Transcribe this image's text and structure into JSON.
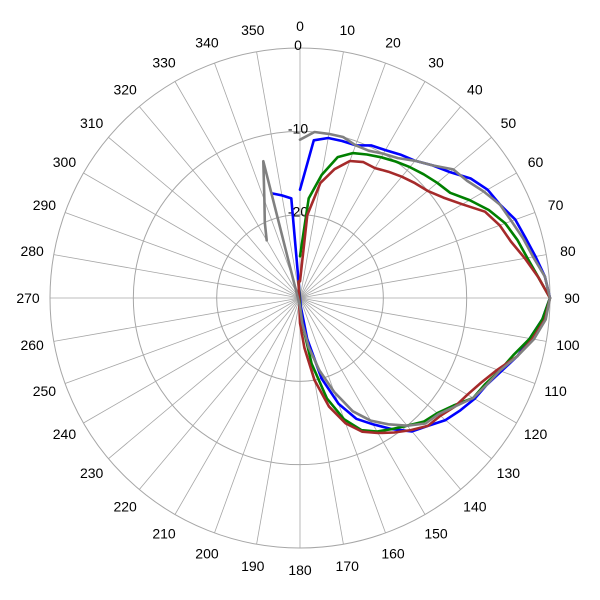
{
  "chart_data": {
    "type": "polar-line",
    "title": "",
    "angle_unit": "degrees",
    "angle_ticks": [
      0,
      10,
      20,
      30,
      40,
      50,
      60,
      70,
      80,
      90,
      100,
      110,
      120,
      130,
      140,
      150,
      160,
      170,
      180,
      190,
      200,
      210,
      220,
      230,
      240,
      250,
      260,
      270,
      280,
      290,
      300,
      310,
      320,
      330,
      340,
      350
    ],
    "angle_tick_labels": [
      "0",
      "10",
      "20",
      "30",
      "40",
      "50",
      "60",
      "70",
      "80",
      "90",
      "100",
      "110",
      "120",
      "130",
      "140",
      "150",
      "160",
      "170",
      "180",
      "190",
      "200",
      "210",
      "220",
      "230",
      "240",
      "250",
      "260",
      "270",
      "280",
      "290",
      "300",
      "310",
      "320",
      "330",
      "340",
      "350"
    ],
    "radial_range": [
      -30,
      0
    ],
    "radial_ticks": [
      0,
      -10,
      -20
    ],
    "radial_tick_labels": [
      "0",
      "-10",
      "-20"
    ],
    "rings": [
      0,
      -10,
      -20,
      -30
    ],
    "grid": true,
    "legend": "none",
    "series": [
      {
        "color": "#0000ff",
        "theta": [
          0,
          5,
          10,
          15,
          20,
          25,
          30,
          35,
          40,
          45,
          50,
          55,
          60,
          65,
          70,
          75,
          80,
          85,
          90,
          95,
          100,
          105,
          110,
          115,
          120,
          125,
          130,
          135,
          140,
          145,
          150,
          155,
          160,
          165,
          170,
          175,
          180,
          355,
          350,
          345
        ],
        "r": [
          -17,
          -11,
          -10.5,
          -10.5,
          -10.5,
          -9.8,
          -9.5,
          -9,
          -8.5,
          -7.5,
          -6.5,
          -5,
          -4,
          -3.5,
          -2.5,
          -2,
          -1.3,
          -0.5,
          0,
          -0.8,
          -2,
          -3,
          -4.3,
          -5.3,
          -5.8,
          -6.5,
          -7.2,
          -8.3,
          -9.1,
          -10.8,
          -12.5,
          -14,
          -16.5,
          -20,
          -25,
          -29,
          -30,
          -18,
          -17.5,
          -17
        ]
      },
      {
        "color": "#008000",
        "theta": [
          0,
          5,
          10,
          15,
          20,
          25,
          30,
          35,
          40,
          45,
          50,
          55,
          60,
          65,
          70,
          75,
          80,
          85,
          90,
          95,
          100,
          105,
          110,
          115,
          120,
          125,
          130,
          135,
          140,
          145,
          150,
          155,
          160,
          165,
          170,
          175,
          180,
          355
        ],
        "r": [
          -25,
          -18,
          -15,
          -12.5,
          -11.5,
          -11,
          -10.5,
          -10,
          -9.5,
          -9,
          -8.5,
          -8,
          -6.5,
          -5,
          -3.8,
          -3,
          -2.3,
          -1.3,
          0,
          -0.8,
          -2,
          -3.5,
          -4.5,
          -5.5,
          -6,
          -7.5,
          -8.5,
          -9,
          -10,
          -10.8,
          -11.5,
          -12.5,
          -14.5,
          -17.5,
          -22,
          -27,
          -29,
          -28
        ]
      },
      {
        "color": "#a52a2a",
        "theta": [
          0,
          5,
          10,
          15,
          20,
          25,
          30,
          35,
          40,
          45,
          50,
          55,
          60,
          65,
          70,
          75,
          80,
          85,
          90,
          95,
          100,
          105,
          110,
          115,
          120,
          125,
          130,
          135,
          140,
          145,
          150,
          155,
          160,
          165,
          170,
          175,
          180,
          355
        ],
        "r": [
          -28,
          -20,
          -16,
          -14,
          -12.5,
          -12,
          -12,
          -11.5,
          -11,
          -10.5,
          -10,
          -9,
          -7.5,
          -5.5,
          -4.5,
          -3.8,
          -2.6,
          -1.3,
          0,
          -0.5,
          -1.7,
          -3,
          -4.8,
          -6,
          -6.8,
          -7.3,
          -8,
          -8.3,
          -9.3,
          -10.3,
          -11.3,
          -12.3,
          -14,
          -16.5,
          -20,
          -24,
          -27,
          -28
        ]
      },
      {
        "color": "#808080",
        "theta": [
          0,
          5,
          10,
          15,
          20,
          25,
          30,
          35,
          40,
          45,
          50,
          55,
          60,
          65,
          70,
          75,
          80,
          85,
          90,
          95,
          100,
          105,
          110,
          115,
          120,
          125,
          130,
          135,
          140,
          145,
          150,
          155,
          160,
          165,
          170,
          175,
          180,
          345,
          340,
          335,
          330
        ],
        "r": [
          -11,
          -10,
          -10,
          -10,
          -10.5,
          -10.5,
          -10,
          -9.5,
          -8.5,
          -7.5,
          -6,
          -5.5,
          -4.5,
          -3.5,
          -3,
          -2.3,
          -1.6,
          -0.5,
          0,
          -0.4,
          -1.5,
          -3,
          -4.5,
          -5.3,
          -6,
          -7.3,
          -8.3,
          -8.7,
          -10,
          -11.5,
          -13,
          -15,
          -18,
          -21,
          -24,
          -27,
          -29,
          -13,
          -17.5,
          -20,
          -22
        ]
      }
    ]
  }
}
